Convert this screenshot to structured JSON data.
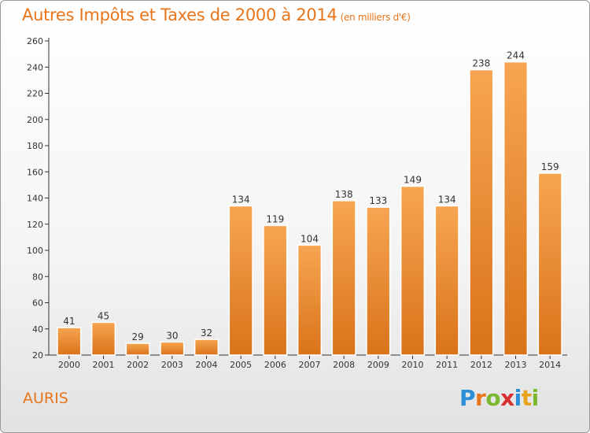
{
  "title": "Autres Impôts et Taxes de 2000 à 2014",
  "subtitle": "(en milliers d'€)",
  "place": "AURIS",
  "logo": {
    "letters": [
      "P",
      "r",
      "o",
      "x",
      "i",
      "t",
      "i"
    ],
    "colors": [
      "#2a8fd6",
      "#e8751a",
      "#7cb82f",
      "#d62f2f",
      "#2a8fd6",
      "#e8a21a",
      "#7cb82f"
    ]
  },
  "colors": {
    "bar_top": "#f7a552",
    "bar_bottom": "#d9731a",
    "title": "#e8751a"
  },
  "chart_data": {
    "type": "bar",
    "categories": [
      "2000",
      "2001",
      "2002",
      "2003",
      "2004",
      "2005",
      "2006",
      "2007",
      "2008",
      "2009",
      "2010",
      "2011",
      "2012",
      "2013",
      "2014"
    ],
    "values": [
      41,
      45,
      29,
      30,
      32,
      134,
      119,
      104,
      138,
      133,
      149,
      134,
      238,
      244,
      159
    ],
    "ylim": [
      20,
      260
    ],
    "yticks": [
      20,
      40,
      60,
      80,
      100,
      120,
      140,
      160,
      180,
      200,
      220,
      240,
      260
    ],
    "grid": false,
    "legend": "none"
  }
}
